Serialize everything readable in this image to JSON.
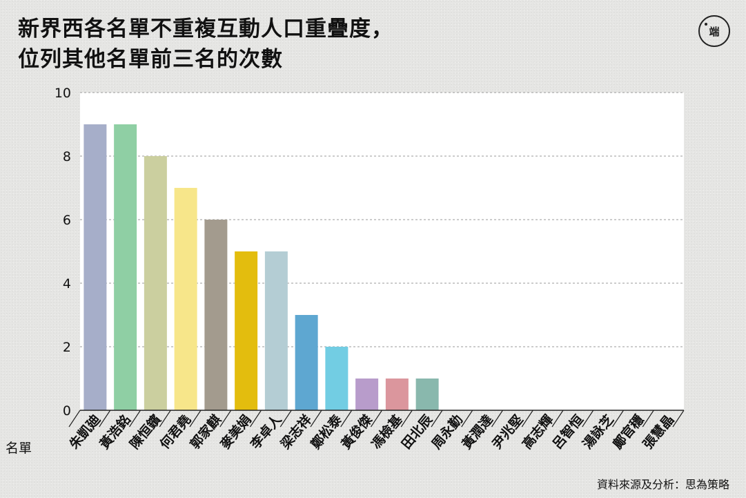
{
  "title_line1": "新界西各名單不重複互動人口重疊度，",
  "title_line2": "位列其他名單前三名的次數",
  "logo_text": "端",
  "source": "資料來源及分析：思為策略",
  "chart_data": {
    "type": "bar",
    "xlabel": "名單",
    "ylabel": "",
    "ylim": [
      0,
      10
    ],
    "yticks": [
      0,
      2,
      4,
      6,
      8,
      10
    ],
    "categories": [
      "朱凱廸",
      "黃浩銘",
      "陳恒鑌",
      "何君堯",
      "郭家麒",
      "麥美娟",
      "李卓人",
      "梁志祥",
      "鄭松泰",
      "黃俊傑",
      "馮檢基",
      "田北辰",
      "周永勤",
      "黃潤達",
      "尹兆堅",
      "高志輝",
      "呂智恒",
      "湯詠芝",
      "鄺官穩",
      "張慧晶"
    ],
    "values": [
      9,
      9,
      8,
      7,
      6,
      5,
      5,
      3,
      2,
      1,
      1,
      1,
      0,
      0,
      0,
      0,
      0,
      0,
      0,
      0
    ],
    "colors": [
      "#a6aec9",
      "#8fcfa4",
      "#cbcf9f",
      "#f7e68a",
      "#a39b8e",
      "#e3bd0e",
      "#b4cdd4",
      "#5ea7d1",
      "#72cde3",
      "#b89ccb",
      "#db969d",
      "#89b8ad",
      "#cccccc",
      "#cccccc",
      "#cccccc",
      "#cccccc",
      "#cccccc",
      "#cccccc",
      "#cccccc",
      "#cccccc"
    ],
    "grid": true,
    "legend": "none"
  }
}
